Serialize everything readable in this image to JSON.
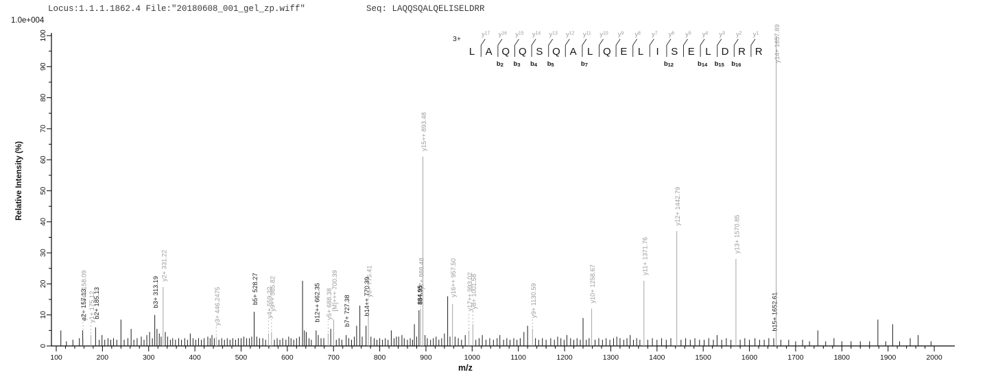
{
  "header": {
    "locus_file": "Locus:1.1.1.1862.4 File:\"20180608_001_gel_zp.wiff\"",
    "seq": "Seq: LAQQSQALQELISELDRR",
    "scale_label": "1.0e+004"
  },
  "sequence_panel": {
    "charge": "3+",
    "residues": [
      "L",
      "A",
      "Q",
      "Q",
      "S",
      "Q",
      "A",
      "L",
      "Q",
      "E",
      "L",
      "I",
      "S",
      "E",
      "L",
      "D",
      "R",
      "R"
    ],
    "y_ions": [
      "y17",
      "y16",
      "y15",
      "y14",
      "y13",
      "y12",
      "y11",
      "y10",
      "y9",
      "y8",
      "y7",
      "y6",
      "y5",
      "y4",
      "y3",
      "y2",
      "y1"
    ],
    "b_ions": {
      "2": "b2",
      "3": "b3",
      "4": "b4",
      "5": "b5",
      "7": "b7",
      "12": "b12",
      "14": "b14",
      "15": "b15",
      "16": "b16"
    }
  },
  "axes": {
    "x_label": "m/z",
    "y_label": "Relative  Intensity (%)",
    "x_min": 100,
    "x_max": 2000,
    "x_major": 100,
    "x_minor": 20,
    "y_min": 0,
    "y_max": 100,
    "y_major": 10,
    "y_minor": 5
  },
  "colors": {
    "y_ion_line": "#a3a3a3",
    "y_ion_label": "#9a9a9a",
    "b_ion_line": "#1a1a1a",
    "b_ion_label": "#1a1a1a",
    "noise_line": "#1a1a1a",
    "axis": "#000000",
    "leader": "#b4b4b4"
  },
  "chart_data": {
    "type": "bar",
    "subtype": "mass-spectrum",
    "xlabel": "m/z",
    "ylabel": "Relative  Intensity (%)",
    "intensity_scale": "1.0e+004",
    "xlim": [
      100,
      2050
    ],
    "ylim": [
      0,
      100
    ],
    "grid": false,
    "peaks_format": [
      "mz",
      "rel_intensity_pct",
      "ion_type(n|b|y|M|x)",
      "label",
      "label_raise_px"
    ],
    "peaks": [
      [
        110,
        5
      ],
      [
        122,
        1.5
      ],
      [
        136,
        2
      ],
      [
        150,
        2.5
      ],
      [
        157.13,
        5,
        "b",
        "a2+ 157.13",
        10
      ],
      [
        158.09,
        2.5,
        "y",
        "y1+ - NH3 158.09",
        22
      ],
      [
        175.12,
        3.5,
        "y",
        "y1+ 175.12",
        14
      ],
      [
        185.13,
        6,
        "b",
        "b2+ 185.13",
        8
      ],
      [
        193,
        2
      ],
      [
        199,
        3.5
      ],
      [
        205,
        2
      ],
      [
        212,
        2.5
      ],
      [
        218,
        2
      ],
      [
        224,
        2.5
      ],
      [
        231,
        2
      ],
      [
        240,
        8.5
      ],
      [
        247,
        2
      ],
      [
        255,
        2.5
      ],
      [
        262,
        5.5
      ],
      [
        268,
        2
      ],
      [
        275,
        2.5
      ],
      [
        284,
        3
      ],
      [
        290,
        2
      ],
      [
        296,
        3.5
      ],
      [
        302,
        4.5
      ],
      [
        308,
        2.5
      ],
      [
        313.19,
        10,
        "b",
        "b3+ 313.19",
        6
      ],
      [
        318,
        5.5
      ],
      [
        323,
        4
      ],
      [
        327,
        3
      ],
      [
        331.22,
        19,
        "y",
        "y2+ 331.22",
        4
      ],
      [
        336,
        4.5
      ],
      [
        341,
        3
      ],
      [
        347,
        2
      ],
      [
        352,
        2.5
      ],
      [
        358,
        2
      ],
      [
        365,
        2.5
      ],
      [
        371,
        2
      ],
      [
        378,
        2.5
      ],
      [
        384,
        2
      ],
      [
        390,
        4
      ],
      [
        396,
        2.5
      ],
      [
        402,
        2
      ],
      [
        408,
        2.5
      ],
      [
        414,
        2
      ],
      [
        420,
        2.5
      ],
      [
        428,
        3
      ],
      [
        433,
        2.5
      ],
      [
        437,
        3.5
      ],
      [
        442,
        2.5
      ],
      [
        446.25,
        3,
        "y",
        "y3+ 446.2475",
        12
      ],
      [
        452,
        2
      ],
      [
        458,
        2.5
      ],
      [
        464,
        2
      ],
      [
        470,
        2.5
      ],
      [
        476,
        2
      ],
      [
        482,
        2.5
      ],
      [
        488,
        2
      ],
      [
        494,
        2.5
      ],
      [
        500,
        2.5
      ],
      [
        506,
        3
      ],
      [
        512,
        2.5
      ],
      [
        518,
        2.5
      ],
      [
        523,
        3
      ],
      [
        528.27,
        11,
        "b",
        "b5+ 528.27",
        6
      ],
      [
        534,
        3
      ],
      [
        540,
        2.5
      ],
      [
        547,
        2.5
      ],
      [
        553,
        2
      ],
      [
        559.32,
        4,
        "y",
        "y4+ 559.32",
        18
      ],
      [
        565.82,
        4.5,
        "y",
        "y9++ 565.82",
        26
      ],
      [
        572,
        2
      ],
      [
        578,
        2.5
      ],
      [
        584,
        2
      ],
      [
        590,
        2.5
      ],
      [
        597,
        2
      ],
      [
        603,
        3
      ],
      [
        608,
        2.5
      ],
      [
        614,
        2
      ],
      [
        620,
        2.5
      ],
      [
        626,
        3
      ],
      [
        633,
        21
      ],
      [
        637,
        5
      ],
      [
        641,
        4.5
      ],
      [
        647,
        2.5
      ],
      [
        652,
        2
      ],
      [
        662.35,
        5,
        "b",
        "b12++ 662.35",
        8
      ],
      [
        667,
        3.5
      ],
      [
        673,
        2.5
      ],
      [
        679,
        2.5
      ],
      [
        688.38,
        4,
        "y",
        "y5+ 688.38",
        16
      ],
      [
        694,
        5.5
      ],
      [
        700.39,
        8.5,
        "M",
        "[M]+++ 700.39",
        8
      ],
      [
        706,
        2
      ],
      [
        712,
        2.5
      ],
      [
        718,
        2
      ],
      [
        727.38,
        3.5,
        "b",
        "b7+ 727.38",
        8
      ],
      [
        733,
        2.5
      ],
      [
        739,
        2
      ],
      [
        745,
        3
      ],
      [
        750,
        6.5
      ],
      [
        757,
        13
      ],
      [
        762,
        3
      ],
      [
        770.39,
        6.5,
        "b",
        "b14++ 770.39",
        10
      ],
      [
        775.41,
        10,
        "y",
        "y6+ 775.41",
        22
      ],
      [
        781,
        3
      ],
      [
        788,
        2.5
      ],
      [
        794,
        2
      ],
      [
        800,
        2.5
      ],
      [
        806,
        2
      ],
      [
        812,
        2.5
      ],
      [
        818,
        2
      ],
      [
        825,
        5
      ],
      [
        831,
        2.5
      ],
      [
        836,
        3
      ],
      [
        841,
        3
      ],
      [
        848,
        3.5
      ],
      [
        853,
        2.5
      ],
      [
        860,
        2
      ],
      [
        866,
        2.5
      ],
      [
        871,
        2
      ],
      [
        875,
        7
      ],
      [
        880,
        3
      ],
      [
        884.95,
        11.5,
        "x",
        "884.95",
        4
      ],
      [
        888.48,
        12,
        "y",
        "y7+ 888.48",
        24
      ],
      [
        893.48,
        61,
        "y",
        "y15++ 893.48",
        4
      ],
      [
        898,
        3.5
      ],
      [
        903,
        2.5
      ],
      [
        910,
        2
      ],
      [
        916,
        2.5
      ],
      [
        922,
        3
      ],
      [
        928,
        2
      ],
      [
        934,
        2.5
      ],
      [
        940,
        4
      ],
      [
        947,
        16
      ],
      [
        952,
        3
      ],
      [
        957.5,
        13.5,
        "y",
        "y16++ 957.50",
        6
      ],
      [
        963,
        3
      ],
      [
        970,
        2.5
      ],
      [
        977,
        2
      ],
      [
        985,
        3.5
      ],
      [
        993.02,
        5,
        "y",
        "y17++ 993.02",
        24
      ],
      [
        1001.58,
        7,
        "y",
        "y8+ 1001.58",
        18
      ],
      [
        1008,
        2
      ],
      [
        1015,
        2.5
      ],
      [
        1022,
        3.5
      ],
      [
        1030,
        2
      ],
      [
        1038,
        2.5
      ],
      [
        1046,
        2
      ],
      [
        1054,
        2.5
      ],
      [
        1060,
        3.5
      ],
      [
        1068,
        2
      ],
      [
        1075,
        2.5
      ],
      [
        1082,
        2
      ],
      [
        1090,
        2.5
      ],
      [
        1097,
        2
      ],
      [
        1104,
        2.5
      ],
      [
        1112,
        4.5
      ],
      [
        1120,
        6.5
      ],
      [
        1130.59,
        5.5,
        "y",
        "y9+ 1130.59",
        12
      ],
      [
        1137,
        2.5
      ],
      [
        1144,
        2
      ],
      [
        1152,
        2.5
      ],
      [
        1160,
        2
      ],
      [
        1170,
        2.5
      ],
      [
        1178,
        2
      ],
      [
        1185,
        3
      ],
      [
        1192,
        2.5
      ],
      [
        1199,
        2
      ],
      [
        1205,
        3.5
      ],
      [
        1213,
        2.5
      ],
      [
        1220,
        2
      ],
      [
        1227,
        2.5
      ],
      [
        1234,
        2
      ],
      [
        1240,
        9
      ],
      [
        1247,
        2
      ],
      [
        1253,
        2.5
      ],
      [
        1258.67,
        12,
        "y",
        "y10+ 1258.67",
        4
      ],
      [
        1266,
        2
      ],
      [
        1274,
        2.5
      ],
      [
        1282,
        2
      ],
      [
        1290,
        2.5
      ],
      [
        1298,
        2
      ],
      [
        1306,
        2.5
      ],
      [
        1313,
        3
      ],
      [
        1320,
        2.5
      ],
      [
        1328,
        2
      ],
      [
        1335,
        2.5
      ],
      [
        1342,
        3.5
      ],
      [
        1349,
        2
      ],
      [
        1356,
        2.5
      ],
      [
        1363,
        2
      ],
      [
        1371.76,
        21,
        "y",
        "y11+ 1371.76",
        4
      ],
      [
        1380,
        2
      ],
      [
        1390,
        2.5
      ],
      [
        1400,
        2
      ],
      [
        1410,
        2.5
      ],
      [
        1420,
        2
      ],
      [
        1430,
        2.5
      ],
      [
        1442.79,
        37,
        "y",
        "y12+ 1442.79",
        4
      ],
      [
        1452,
        2
      ],
      [
        1462,
        2.5
      ],
      [
        1472,
        2
      ],
      [
        1482,
        2.5
      ],
      [
        1492,
        2
      ],
      [
        1502,
        2
      ],
      [
        1512,
        2.5
      ],
      [
        1522,
        2
      ],
      [
        1530,
        3.5
      ],
      [
        1540,
        2
      ],
      [
        1550,
        2.5
      ],
      [
        1560,
        2
      ],
      [
        1570.85,
        28,
        "y",
        "y13+ 1570.85",
        4
      ],
      [
        1580,
        2
      ],
      [
        1590,
        2.5
      ],
      [
        1600,
        2
      ],
      [
        1612,
        2.5
      ],
      [
        1622,
        2
      ],
      [
        1632,
        2
      ],
      [
        1642,
        2.5
      ],
      [
        1652.61,
        2.5,
        "b",
        "b15+ 1652.61",
        6
      ],
      [
        1657.89,
        100,
        "y",
        "y14+ 1657.89",
        -44
      ],
      [
        1668,
        2
      ],
      [
        1685,
        2
      ],
      [
        1700,
        1.5
      ],
      [
        1715,
        2
      ],
      [
        1730,
        1.5
      ],
      [
        1748,
        5
      ],
      [
        1765,
        1.5
      ],
      [
        1783,
        2.5
      ],
      [
        1800,
        1.5
      ],
      [
        1820,
        1.5
      ],
      [
        1840,
        1.5
      ],
      [
        1860,
        1.5
      ],
      [
        1878,
        8.5
      ],
      [
        1895,
        1.5
      ],
      [
        1910,
        7
      ],
      [
        1925,
        1.5
      ],
      [
        1948,
        2.5
      ],
      [
        1965,
        3.5
      ],
      [
        1993,
        1.5
      ]
    ]
  }
}
